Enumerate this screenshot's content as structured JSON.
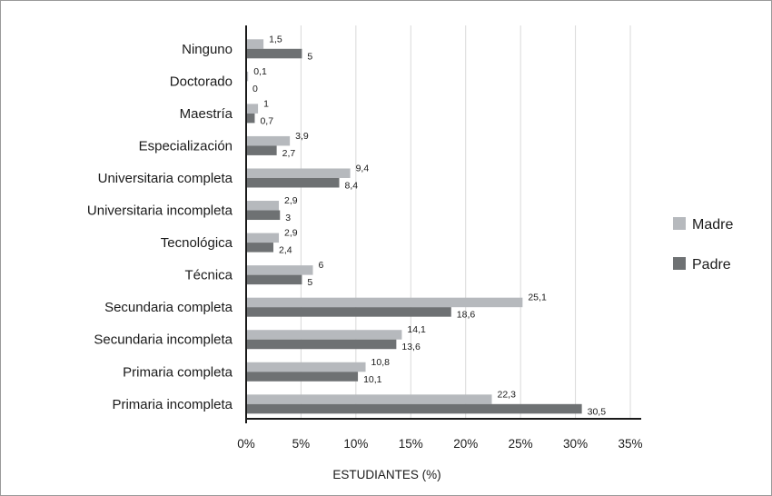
{
  "chart_data": {
    "type": "bar",
    "orientation": "horizontal",
    "categories": [
      "Ninguno",
      "Doctorado",
      "Maestría",
      "Especialización",
      "Universitaria completa",
      "Universitaria incompleta",
      "Tecnológica",
      "Técnica",
      "Secundaria completa",
      "Secundaria incompleta",
      "Primaria completa",
      "Primaria incompleta"
    ],
    "series": [
      {
        "name": "Madre",
        "color": "#b6b9bd",
        "values": [
          1.5,
          0.1,
          1,
          3.9,
          9.4,
          2.9,
          2.9,
          6,
          25.1,
          14.1,
          10.8,
          22.3
        ],
        "labels": [
          "1,5",
          "0,1",
          "1",
          "3,9",
          "9,4",
          "2,9",
          "2,9",
          "6",
          "25,1",
          "14,1",
          "10,8",
          "22,3"
        ]
      },
      {
        "name": "Padre",
        "color": "#6e7173",
        "values": [
          5,
          0,
          0.7,
          2.7,
          8.4,
          3,
          2.4,
          5,
          18.6,
          13.6,
          10.1,
          30.5
        ],
        "labels": [
          "5",
          "0",
          "0,7",
          "2,7",
          "8,4",
          "3",
          "2,4",
          "5",
          "18,6",
          "13,6",
          "10,1",
          "30,5"
        ]
      }
    ],
    "xlabel": "ESTUDIANTES (%)",
    "ylabel": "",
    "xlim": [
      0,
      35
    ],
    "xticks": [
      0,
      5,
      10,
      15,
      20,
      25,
      30,
      35
    ],
    "xtick_labels": [
      "0%",
      "5%",
      "10%",
      "15%",
      "20%",
      "25%",
      "30%",
      "35%"
    ],
    "grid": true,
    "legend_position": "right"
  }
}
